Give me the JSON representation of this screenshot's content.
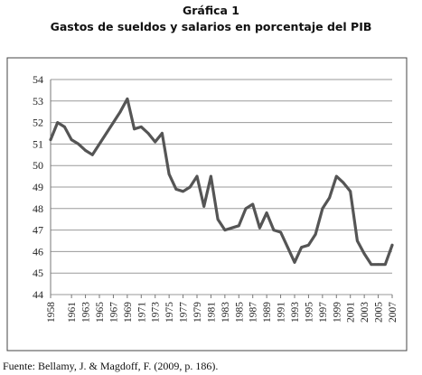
{
  "figure": {
    "heading": "Gráfica 1",
    "title": "Gastos de sueldos y salarios en porcentaje del PIB",
    "source": "Fuente: Bellamy, J. & Magdoff, F. (2009, p. 186)."
  },
  "chart_data": {
    "type": "line",
    "title": "Gastos de sueldos y salarios en porcentaje del PIB",
    "xlabel": "",
    "ylabel": "",
    "ylim": [
      44,
      54
    ],
    "yticks": [
      44,
      45,
      46,
      47,
      48,
      49,
      50,
      51,
      52,
      53,
      54
    ],
    "xticks": [
      "1958",
      "1961",
      "1963",
      "1965",
      "1967",
      "1969",
      "1971",
      "1973",
      "1975",
      "1977",
      "1979",
      "1981",
      "1983",
      "1985",
      "1987",
      "1989",
      "1991",
      "1993",
      "1995",
      "1997",
      "1999",
      "2001",
      "2003",
      "2005",
      "2007"
    ],
    "grid": true,
    "line_color": "#555555",
    "series": [
      {
        "name": "",
        "x": [
          1958,
          1959,
          1960,
          1961,
          1962,
          1963,
          1964,
          1965,
          1966,
          1967,
          1968,
          1969,
          1970,
          1971,
          1972,
          1973,
          1974,
          1975,
          1976,
          1977,
          1978,
          1979,
          1980,
          1981,
          1982,
          1983,
          1984,
          1985,
          1986,
          1987,
          1988,
          1989,
          1990,
          1991,
          1992,
          1993,
          1994,
          1995,
          1996,
          1997,
          1998,
          1999,
          2000,
          2001,
          2002,
          2003,
          2004,
          2005,
          2006,
          2007
        ],
        "values": [
          51.2,
          52.0,
          51.8,
          51.2,
          51.0,
          50.7,
          50.5,
          51.0,
          51.5,
          52.0,
          52.5,
          53.1,
          51.7,
          51.8,
          51.5,
          51.1,
          51.5,
          49.6,
          48.9,
          48.8,
          49.0,
          49.5,
          48.1,
          49.5,
          47.5,
          47.0,
          47.1,
          47.2,
          48.0,
          48.2,
          47.1,
          47.8,
          47.0,
          46.9,
          46.2,
          45.5,
          46.2,
          46.3,
          46.8,
          48.0,
          48.5,
          49.5,
          49.2,
          48.8,
          46.5,
          45.9,
          45.4,
          45.4,
          45.4,
          46.3
        ]
      }
    ]
  }
}
